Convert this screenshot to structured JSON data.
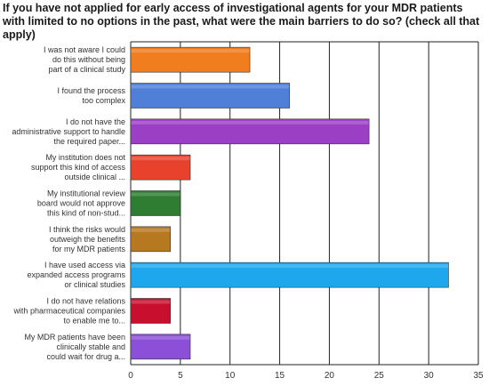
{
  "chart_data": {
    "type": "bar",
    "orientation": "horizontal",
    "title": "If you have not applied for early access of investigational agents for your MDR patients with limited to no options in the past, what were the main barriers to do so? (check all that apply)",
    "categories": [
      [
        "I was not aware I could",
        "do this without being",
        "part of a clinical study"
      ],
      [
        "I found the process",
        "too complex"
      ],
      [
        "I do not have the",
        "administrative support to handle",
        "the required paper..."
      ],
      [
        "My institution does not",
        "support this kind of access",
        "outside clinical ..."
      ],
      [
        "My institutional review",
        "board would not approve",
        "this kind of non-stud..."
      ],
      [
        "I think the risks would",
        "outweigh the benefits",
        "for my MDR patients"
      ],
      [
        "I have used access via",
        "expanded access programs",
        "or clinical studies"
      ],
      [
        "I do not have relations",
        "with pharmaceutical companies",
        "to enable me to..."
      ],
      [
        "My MDR patients have been",
        "clinically stable and",
        "could wait for drug a..."
      ]
    ],
    "values": [
      12,
      16,
      24,
      6,
      5,
      4,
      32,
      4,
      6
    ],
    "colors": [
      "#f07d1e",
      "#4f7fd6",
      "#9b3fc4",
      "#e8412c",
      "#2e7d32",
      "#b7791f",
      "#1ea7ec",
      "#c8102e",
      "#8b4fd8"
    ],
    "xlim": [
      0,
      35
    ],
    "xticks": [
      "0",
      "5",
      "10",
      "15",
      "20",
      "25",
      "30",
      "35"
    ],
    "grid": true,
    "xlabel": "",
    "ylabel": ""
  }
}
